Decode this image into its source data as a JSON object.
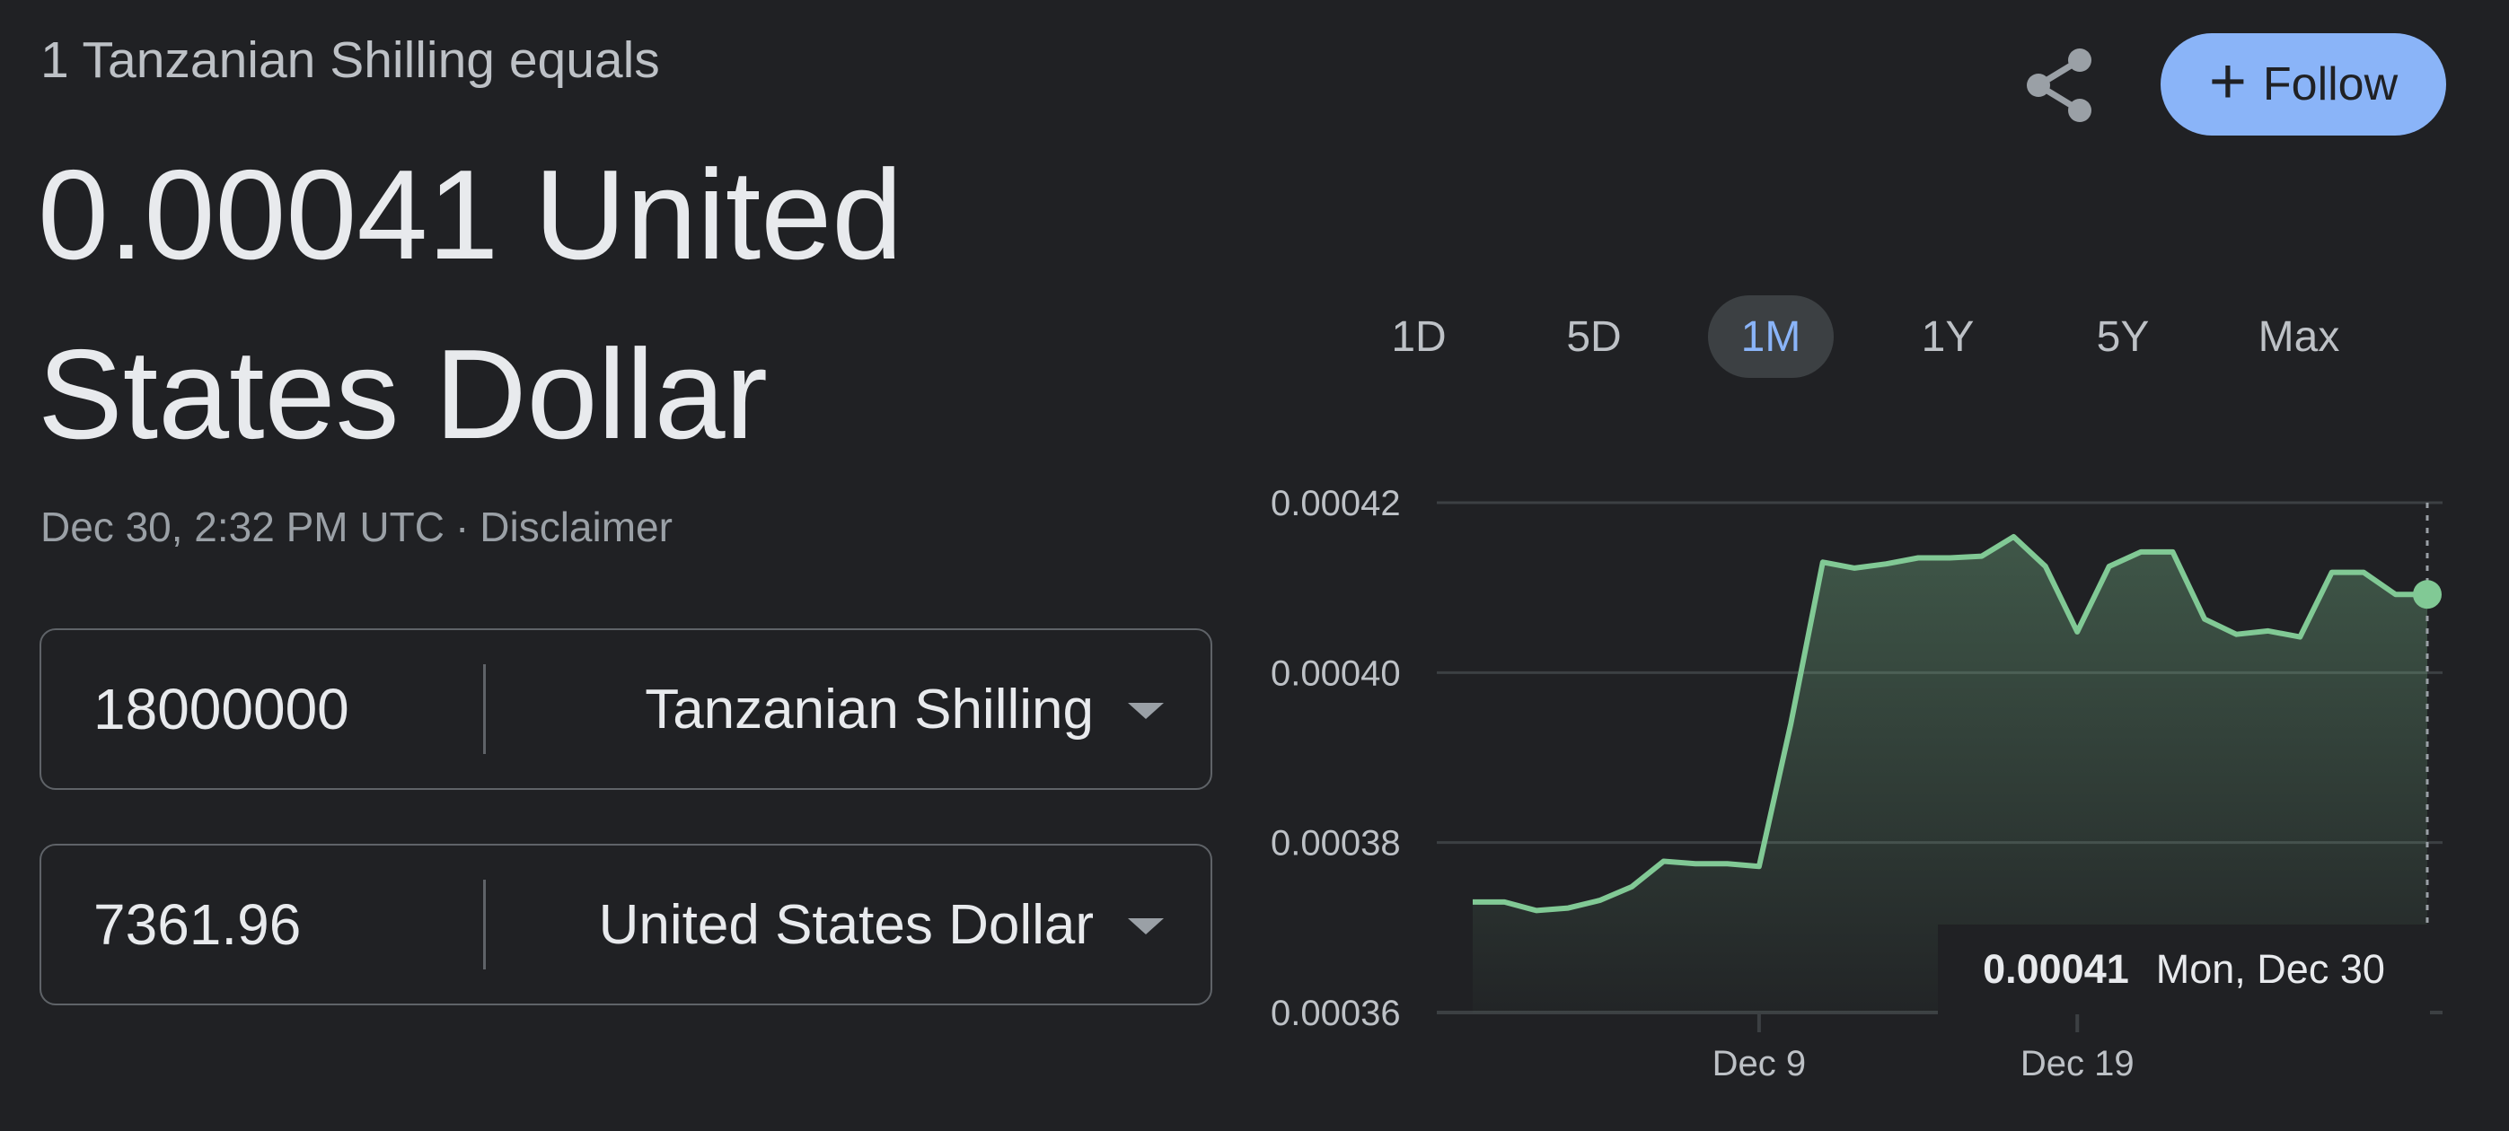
{
  "header": {
    "equals_label": "1 Tanzanian Shilling equals",
    "result_value": "0.00041 United States Dollar",
    "timestamp": "Dec 30, 2:32 PM UTC",
    "separator": "·",
    "disclaimer": "Disclaimer"
  },
  "actions": {
    "share_icon": "share-icon",
    "follow_label": "Follow",
    "follow_icon": "+"
  },
  "converter": {
    "from": {
      "amount": "18000000",
      "currency": "Tanzanian Shilling"
    },
    "to": {
      "amount": "7361.96",
      "currency": "United States Dollar"
    }
  },
  "range_tabs": [
    {
      "label": "1D",
      "active": false
    },
    {
      "label": "5D",
      "active": false
    },
    {
      "label": "1M",
      "active": true
    },
    {
      "label": "1Y",
      "active": false
    },
    {
      "label": "5Y",
      "active": false
    },
    {
      "label": "Max",
      "active": false
    }
  ],
  "tooltip": {
    "value": "0.00041",
    "date": "Mon, Dec 30"
  },
  "colors": {
    "background": "#202124",
    "accent": "#8ab4f8",
    "line": "#81c995",
    "grid": "#3c4043"
  },
  "chart_data": {
    "type": "area",
    "x_ticks": [
      "Dec 9",
      "Dec 19"
    ],
    "y_ticks": [
      "0.00042",
      "0.00040",
      "0.00038",
      "0.00036"
    ],
    "ylim": [
      0.00036,
      0.00042
    ],
    "grid": true,
    "series": [
      {
        "x": [
          "Nov 30",
          "Dec 1",
          "Dec 2",
          "Dec 3",
          "Dec 4",
          "Dec 5",
          "Dec 6",
          "Dec 7",
          "Dec 8",
          "Dec 9",
          "Dec 10",
          "Dec 11",
          "Dec 12",
          "Dec 13",
          "Dec 14",
          "Dec 15",
          "Dec 16",
          "Dec 17",
          "Dec 18",
          "Dec 19",
          "Dec 20",
          "Dec 21",
          "Dec 22",
          "Dec 23",
          "Dec 24",
          "Dec 25",
          "Dec 26",
          "Dec 27",
          "Dec 28",
          "Dec 29",
          "Dec 30"
        ],
        "values": [
          0.000373,
          0.000373,
          0.000372,
          0.0003723,
          0.0003732,
          0.0003748,
          0.0003778,
          0.0003775,
          0.0003775,
          0.0003772,
          0.000394,
          0.000413,
          0.0004123,
          0.0004128,
          0.0004135,
          0.0004135,
          0.0004137,
          0.000416,
          0.0004125,
          0.0004048,
          0.0004125,
          0.0004142,
          0.0004142,
          0.0004063,
          0.0004045,
          0.0004049,
          0.0004042,
          0.0004118,
          0.0004118,
          0.0004092,
          0.0004092
        ]
      }
    ]
  }
}
